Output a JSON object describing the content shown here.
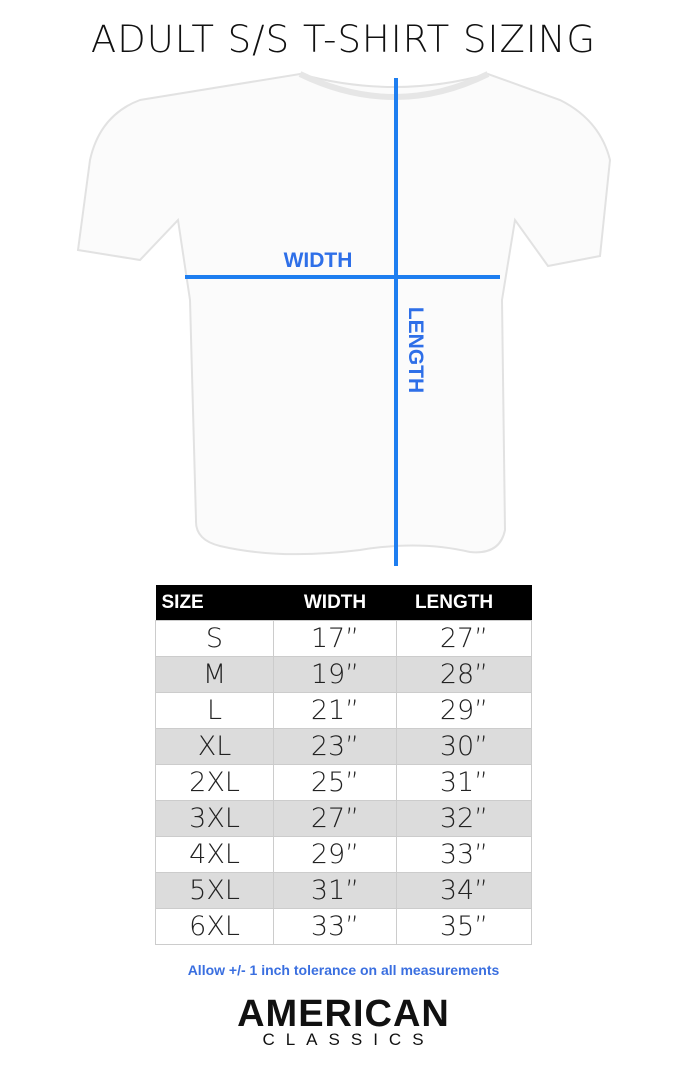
{
  "title": "ADULT S/S T-SHIRT SIZING",
  "diagram": {
    "width_label": "WIDTH",
    "length_label": "LENGTH",
    "line_color": "#1e7ef0"
  },
  "table": {
    "headers": [
      "SIZE",
      "WIDTH",
      "LENGTH"
    ],
    "rows": [
      [
        "S",
        "17”",
        "27”"
      ],
      [
        "M",
        "19”",
        "28”"
      ],
      [
        "L",
        "21”",
        "29”"
      ],
      [
        "XL",
        "23”",
        "30”"
      ],
      [
        "2XL",
        "25”",
        "31”"
      ],
      [
        "3XL",
        "27”",
        "32”"
      ],
      [
        "4XL",
        "29”",
        "33”"
      ],
      [
        "5XL",
        "31”",
        "34”"
      ],
      [
        "6XL",
        "33”",
        "35”"
      ]
    ]
  },
  "note": "Allow +/- 1 inch tolerance on all measurements",
  "logo": {
    "line1": "AMERICAN",
    "line2": "CLASSICS"
  }
}
